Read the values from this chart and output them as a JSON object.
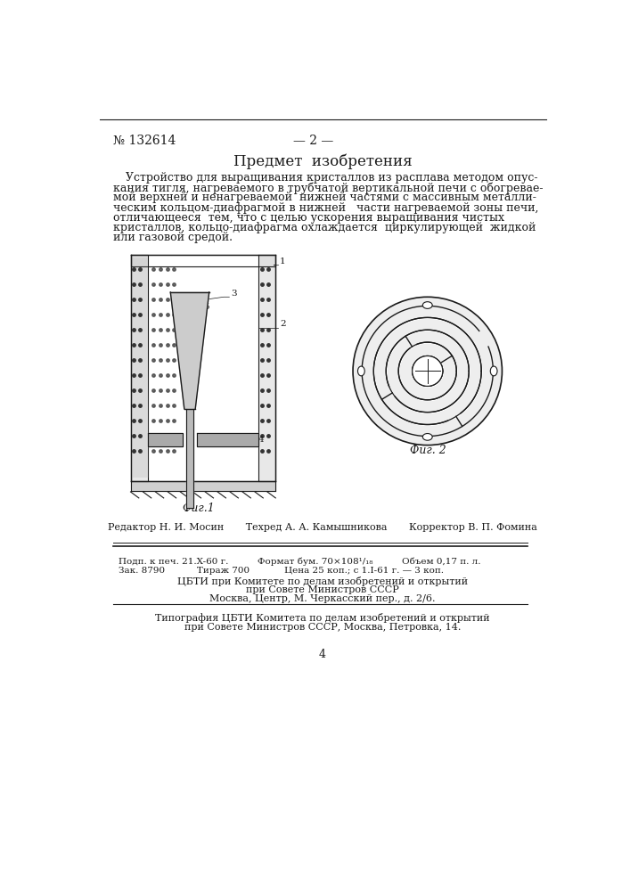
{
  "bg_color": "#ffffff",
  "text_color": "#1a1a1a",
  "patent_number": "№ 132614",
  "page_number": "— 2 —",
  "section_title": "Предмет  изобретения",
  "body_text": [
    "Устройство для выращивания кристаллов из расплава методом опус-",
    "кания тигля, нагреваемого в трубчатой вертикальной печи с обогревае-",
    "мой верхней и ненагреваемой  нижней частями с массивным металли-",
    "ческим кольцом-диафрагмой в нижней   части нагреваемой зоны печи,",
    "отличающееся  тем, что с целью ускорения выращивания чистых",
    "кристаллов, кольцо-диафрагма охлаждается  циркулирующей  жидкой",
    "или газовой средой."
  ],
  "fig1_label": "Фиг.1",
  "fig2_label": "Фиг. 2",
  "editor_line": "Редактор Н. И. Мосин       Техред А. А. Камышникова       Корректор В. П. Фомина",
  "info_line1": "Подп. к печ. 21.X-60 г.          Формат бум. 70×108¹/₁₈          Объем 0,17 п. л.",
  "info_line2": "Зак. 8790           Тираж 700            Цена 25 коп.; с 1.I-61 г. — 3 коп.",
  "cbti_line1": "ЦБТИ при Комитете по делам изобретений и открытий",
  "cbti_line2": "при Совете Министров СССР",
  "cbti_line3": "Москва, Центр, М. Черкасский пер., д. 2/6.",
  "typ_line1": "Типография ЦБТИ Комитета по делам изобретений и открытий",
  "typ_line2": "при Совете Министров СССР, Москва, Петровка, 14.",
  "page_num_bottom": "4"
}
